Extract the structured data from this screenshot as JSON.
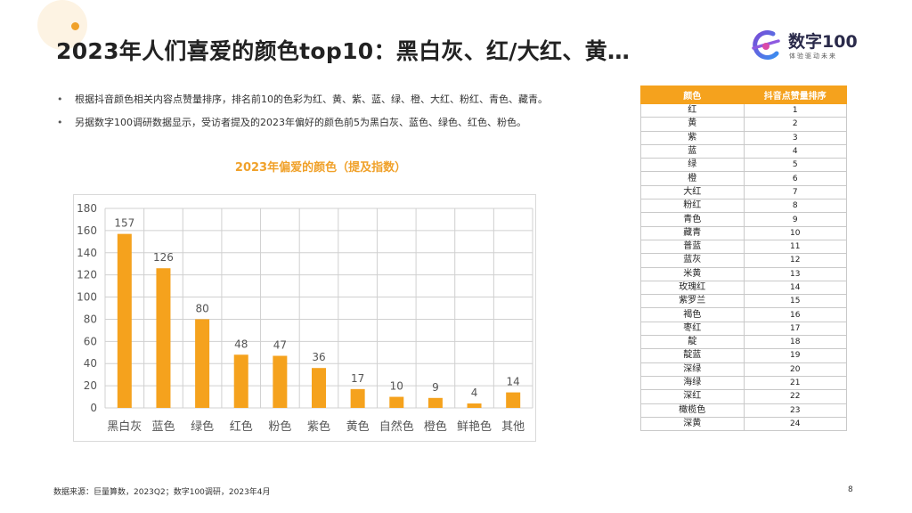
{
  "slide": {
    "title": "2023年人们喜爱的颜色top10：黑白灰、红/大红、黄…",
    "bullets": [
      "根据抖音颜色相关内容点赞量排序，排名前10的色彩为红、黄、紫、蓝、绿、橙、大红、粉红、青色、藏青。",
      "另据数字100调研数据显示，受访者提及的2023年偏好的颜色前5为黑白灰、蓝色、绿色、红色、粉色。"
    ],
    "footer": "数据来源：巨量算数，2023Q2；数字100调研，2023年4月",
    "page_number": "8"
  },
  "logo": {
    "name": "数字100",
    "slogan": "体验驱动未来"
  },
  "colors": {
    "accent": "#f5a21d",
    "bar": "#f5a21d",
    "title_orange": "#f0a12a"
  },
  "chart_data": {
    "type": "bar",
    "title": "2023年偏爱的颜色（提及指数）",
    "categories": [
      "黑白灰",
      "蓝色",
      "绿色",
      "红色",
      "粉色",
      "紫色",
      "黄色",
      "自然色",
      "橙色",
      "鲜艳色",
      "其他"
    ],
    "values": [
      157,
      126,
      80,
      48,
      47,
      36,
      17,
      10,
      9,
      4,
      14
    ],
    "ylim": [
      0,
      180
    ],
    "yticks": [
      0,
      20,
      40,
      60,
      80,
      100,
      120,
      140,
      160,
      180
    ],
    "grid": true,
    "xlabel": "",
    "ylabel": ""
  },
  "ranking_table": {
    "headers": [
      "颜色",
      "抖音点赞量排序"
    ],
    "rows": [
      [
        "红",
        "1"
      ],
      [
        "黄",
        "2"
      ],
      [
        "紫",
        "3"
      ],
      [
        "蓝",
        "4"
      ],
      [
        "绿",
        "5"
      ],
      [
        "橙",
        "6"
      ],
      [
        "大红",
        "7"
      ],
      [
        "粉红",
        "8"
      ],
      [
        "青色",
        "9"
      ],
      [
        "藏青",
        "10"
      ],
      [
        "普蓝",
        "11"
      ],
      [
        "蓝灰",
        "12"
      ],
      [
        "米黄",
        "13"
      ],
      [
        "玫瑰红",
        "14"
      ],
      [
        "紫罗兰",
        "15"
      ],
      [
        "褐色",
        "16"
      ],
      [
        "枣红",
        "17"
      ],
      [
        "靛",
        "18"
      ],
      [
        "靛蓝",
        "19"
      ],
      [
        "深绿",
        "20"
      ],
      [
        "海绿",
        "21"
      ],
      [
        "深红",
        "22"
      ],
      [
        "橄榄色",
        "23"
      ],
      [
        "深黄",
        "24"
      ]
    ]
  }
}
